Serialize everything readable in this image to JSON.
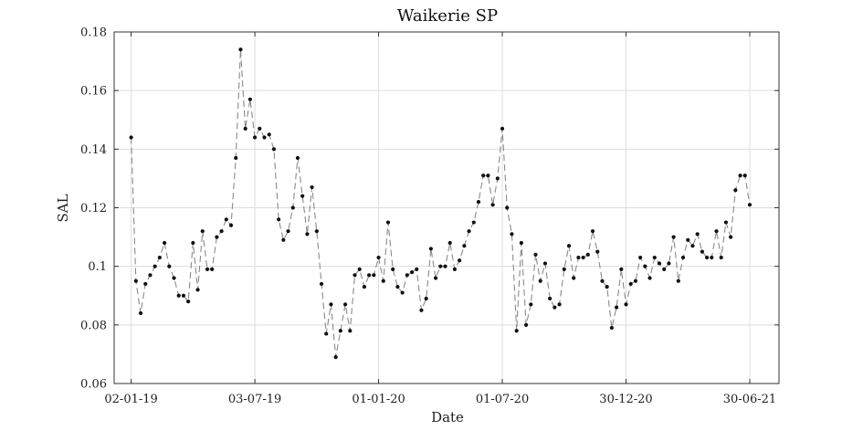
{
  "chart_data": {
    "type": "line",
    "title": "Waikerie SP",
    "xlabel": "Date",
    "ylabel": "SAL",
    "ylim": [
      0.06,
      0.18
    ],
    "xlim": [
      "2018-12-08",
      "2021-08-12"
    ],
    "grid": true,
    "legend": "none",
    "colors": {
      "line": "#8a8a8a",
      "marker": "#111111",
      "grid": "#dddddd",
      "axis": "#333333"
    },
    "x_ticks": [
      {
        "date": "2019-01-02",
        "label": "02-01-19"
      },
      {
        "date": "2019-07-03",
        "label": "03-07-19"
      },
      {
        "date": "2020-01-01",
        "label": "01-01-20"
      },
      {
        "date": "2020-07-01",
        "label": "01-07-20"
      },
      {
        "date": "2020-12-30",
        "label": "30-12-20"
      },
      {
        "date": "2021-06-30",
        "label": "30-06-21"
      }
    ],
    "y_ticks": [
      {
        "value": 0.06,
        "label": "0.06"
      },
      {
        "value": 0.08,
        "label": "0.08"
      },
      {
        "value": 0.1,
        "label": "0.1"
      },
      {
        "value": 0.12,
        "label": "0.12"
      },
      {
        "value": 0.14,
        "label": "0.14"
      },
      {
        "value": 0.16,
        "label": "0.16"
      },
      {
        "value": 0.18,
        "label": "0.18"
      }
    ],
    "series": [
      {
        "x": [
          "2019-01-02",
          "2019-01-09",
          "2019-01-16",
          "2019-01-23",
          "2019-01-30",
          "2019-02-06",
          "2019-02-13",
          "2019-02-20",
          "2019-02-27",
          "2019-03-06",
          "2019-03-13",
          "2019-03-20",
          "2019-03-27",
          "2019-04-03",
          "2019-04-10",
          "2019-04-17",
          "2019-04-24",
          "2019-05-01",
          "2019-05-08",
          "2019-05-15",
          "2019-05-22",
          "2019-05-29",
          "2019-06-05",
          "2019-06-12",
          "2019-06-19",
          "2019-06-26",
          "2019-07-03",
          "2019-07-10",
          "2019-07-17",
          "2019-07-24",
          "2019-07-31",
          "2019-08-07",
          "2019-08-14",
          "2019-08-21",
          "2019-08-28",
          "2019-09-04",
          "2019-09-11",
          "2019-09-18",
          "2019-09-25",
          "2019-10-02",
          "2019-10-09",
          "2019-10-16",
          "2019-10-23",
          "2019-10-30",
          "2019-11-06",
          "2019-11-13",
          "2019-11-20",
          "2019-11-27",
          "2019-12-04",
          "2019-12-11",
          "2019-12-18",
          "2019-12-25",
          "2020-01-01",
          "2020-01-08",
          "2020-01-15",
          "2020-01-22",
          "2020-01-29",
          "2020-02-05",
          "2020-02-12",
          "2020-02-19",
          "2020-02-26",
          "2020-03-04",
          "2020-03-11",
          "2020-03-18",
          "2020-03-25",
          "2020-04-01",
          "2020-04-08",
          "2020-04-15",
          "2020-04-22",
          "2020-04-29",
          "2020-05-06",
          "2020-05-13",
          "2020-05-20",
          "2020-05-27",
          "2020-06-03",
          "2020-06-10",
          "2020-06-17",
          "2020-06-24",
          "2020-07-01",
          "2020-07-08",
          "2020-07-15",
          "2020-07-22",
          "2020-07-29",
          "2020-08-05",
          "2020-08-12",
          "2020-08-19",
          "2020-08-26",
          "2020-09-02",
          "2020-09-09",
          "2020-09-16",
          "2020-09-23",
          "2020-09-30",
          "2020-10-07",
          "2020-10-14",
          "2020-10-21",
          "2020-10-28",
          "2020-11-04",
          "2020-11-11",
          "2020-11-18",
          "2020-11-25",
          "2020-12-02",
          "2020-12-09",
          "2020-12-16",
          "2020-12-23",
          "2020-12-30",
          "2021-01-06",
          "2021-01-13",
          "2021-01-20",
          "2021-01-27",
          "2021-02-03",
          "2021-02-10",
          "2021-02-17",
          "2021-02-24",
          "2021-03-03",
          "2021-03-10",
          "2021-03-17",
          "2021-03-24",
          "2021-03-31",
          "2021-04-07",
          "2021-04-14",
          "2021-04-21",
          "2021-04-28",
          "2021-05-05",
          "2021-05-12",
          "2021-05-19",
          "2021-05-26",
          "2021-06-02",
          "2021-06-09",
          "2021-06-16",
          "2021-06-23",
          "2021-06-30"
        ],
        "y": [
          0.144,
          0.095,
          0.084,
          0.094,
          0.097,
          0.1,
          0.103,
          0.108,
          0.1,
          0.096,
          0.09,
          0.09,
          0.088,
          0.108,
          0.092,
          0.112,
          0.099,
          0.099,
          0.11,
          0.112,
          0.116,
          0.114,
          0.137,
          0.174,
          0.147,
          0.157,
          0.144,
          0.147,
          0.144,
          0.145,
          0.14,
          0.116,
          0.109,
          0.112,
          0.12,
          0.137,
          0.124,
          0.111,
          0.127,
          0.112,
          0.094,
          0.077,
          0.087,
          0.069,
          0.078,
          0.087,
          0.078,
          0.097,
          0.099,
          0.093,
          0.097,
          0.097,
          0.103,
          0.095,
          0.115,
          0.099,
          0.093,
          0.091,
          0.097,
          0.098,
          0.099,
          0.085,
          0.089,
          0.106,
          0.096,
          0.1,
          0.1,
          0.108,
          0.099,
          0.102,
          0.107,
          0.112,
          0.115,
          0.122,
          0.131,
          0.131,
          0.121,
          0.13,
          0.147,
          0.12,
          0.111,
          0.078,
          0.108,
          0.08,
          0.087,
          0.104,
          0.095,
          0.101,
          0.089,
          0.086,
          0.087,
          0.099,
          0.107,
          0.096,
          0.103,
          0.103,
          0.104,
          0.112,
          0.105,
          0.095,
          0.093,
          0.079,
          0.086,
          0.099,
          0.087,
          0.094,
          0.095,
          0.103,
          0.1,
          0.096,
          0.103,
          0.101,
          0.099,
          0.101,
          0.11,
          0.095,
          0.103,
          0.109,
          0.107,
          0.111,
          0.105,
          0.103,
          0.103,
          0.112,
          0.103,
          0.115,
          0.11,
          0.126,
          0.131,
          0.131,
          0.121
        ]
      }
    ]
  }
}
